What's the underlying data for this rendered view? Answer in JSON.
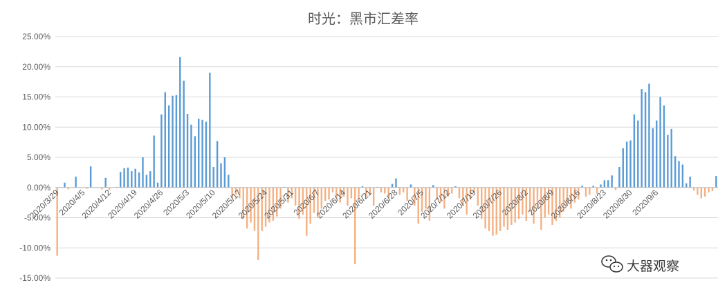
{
  "chart_data": {
    "type": "bar",
    "title": "时光：黑市汇差率",
    "xlabel": "",
    "ylabel": "",
    "ylim": [
      -0.15,
      0.25
    ],
    "y_ticks": [
      "-15.00%",
      "-10.00%",
      "-5.00%",
      "0.00%",
      "5.00%",
      "10.00%",
      "15.00%",
      "20.00%",
      "25.00%"
    ],
    "x_tick_labels": [
      "2020/3/29",
      "2020/4/5",
      "2020/4/12",
      "2020/4/19",
      "2020/4/26",
      "2020/5/3",
      "2020/5/10",
      "2020/5/17",
      "2020/5/24",
      "2020/5/31",
      "2020/6/7",
      "2020/6/14",
      "2020/6/21",
      "2020/6/28",
      "2020/7/5",
      "2020/7/12",
      "2020/7/19",
      "2020/7/26",
      "2020/8/2",
      "2020/8/9",
      "2020/8/16",
      "2020/8/23",
      "2020/8/30",
      "2020/9/6"
    ],
    "x_start": "2020/3/29",
    "grid": true,
    "legend": "none",
    "colors": {
      "positive": "#5b9bd5",
      "negative": "#f4b183",
      "gridline": "#d9d9d9",
      "title": "#595959",
      "tick": "#595959"
    },
    "values": [
      -0.113,
      0,
      0.008,
      -0.003,
      0,
      0.018,
      0,
      0,
      -0.002,
      0.035,
      0,
      0,
      -0.003,
      0.016,
      -0.004,
      0,
      0.001,
      0.026,
      0.032,
      0.033,
      0.027,
      0.031,
      0.025,
      0.05,
      0.021,
      0.027,
      0.086,
      0.008,
      0.121,
      0.158,
      0.136,
      0.152,
      0.153,
      0.216,
      0.177,
      0.122,
      0.104,
      0.085,
      0.114,
      0.112,
      0.109,
      0.19,
      0.034,
      0.077,
      0.04,
      0.05,
      0.021,
      -0.018,
      -0.012,
      -0.018,
      -0.052,
      -0.068,
      -0.058,
      -0.072,
      -0.12,
      -0.072,
      -0.065,
      -0.058,
      -0.055,
      -0.048,
      -0.035,
      0.001,
      -0.025,
      -0.018,
      -0.03,
      -0.052,
      -0.045,
      -0.08,
      -0.06,
      -0.042,
      -0.05,
      -0.035,
      -0.022,
      -0.02,
      -0.008,
      -0.018,
      -0.025,
      -0.015,
      -0.03,
      -0.018,
      -0.127,
      -0.02,
      0.002,
      -0.015,
      -0.012,
      -0.03,
      0.001,
      -0.008,
      -0.01,
      -0.018,
      0.006,
      0.015,
      -0.012,
      -0.008,
      -0.022,
      0.005,
      -0.03,
      -0.06,
      -0.04,
      -0.035,
      -0.055,
      0.004,
      -0.02,
      -0.025,
      -0.035,
      -0.015,
      -0.01,
      0.002,
      -0.018,
      -0.03,
      -0.045,
      -0.02,
      -0.008,
      -0.03,
      -0.052,
      -0.068,
      -0.072,
      -0.08,
      -0.078,
      -0.072,
      -0.065,
      -0.07,
      -0.062,
      -0.058,
      -0.052,
      -0.045,
      -0.055,
      -0.04,
      -0.06,
      -0.035,
      -0.07,
      -0.05,
      -0.045,
      -0.062,
      -0.055,
      -0.05,
      -0.04,
      -0.03,
      -0.035,
      -0.025,
      -0.02,
      0.003,
      -0.015,
      -0.012,
      0.003,
      -0.01,
      0.005,
      0.012,
      0.012,
      0.02,
      -0.004,
      0.034,
      0.065,
      0.076,
      0.078,
      0.121,
      0.111,
      0.163,
      0.158,
      0.172,
      0.098,
      0.111,
      0.15,
      0.136,
      0.087,
      0.097,
      0.052,
      0.044,
      0.038,
      0.007,
      0.018,
      -0.005,
      -0.012,
      -0.018,
      -0.015,
      -0.008,
      -0.006,
      0.019
    ],
    "watermark": "大器观察"
  }
}
